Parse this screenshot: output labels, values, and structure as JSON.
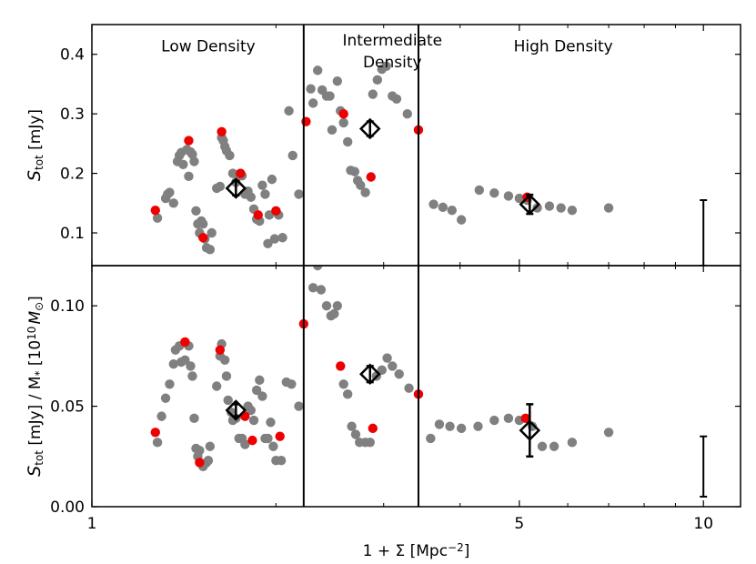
{
  "chart_data": [
    {
      "panel": "top",
      "type": "scatter",
      "xscale": "log",
      "xlim": [
        1.0,
        11.5
      ],
      "ylim": [
        0.045,
        0.45
      ],
      "ylabel_main": "S",
      "ylabel_sub": "tot",
      "ylabel_unit": " [mJy]",
      "yticks": [
        0.1,
        0.2,
        0.3,
        0.4
      ],
      "ytick_labels": [
        "0.1",
        "0.2",
        "0.3",
        "0.4"
      ],
      "region_labels": [
        {
          "text": "Low Density",
          "x": 1.55,
          "y": 0.405
        },
        {
          "text": "Intermediate",
          "x": 3.1,
          "y": 0.415
        },
        {
          "text": "Density",
          "x": 3.1,
          "y": 0.378
        },
        {
          "text": "High Density",
          "x": 5.9,
          "y": 0.405
        }
      ],
      "dividers": [
        2.22,
        3.42
      ],
      "series": [
        {
          "name": "gray",
          "color": "#808080",
          "points": [
            [
              1.28,
              0.125
            ],
            [
              1.32,
              0.158
            ],
            [
              1.33,
              0.165
            ],
            [
              1.34,
              0.168
            ],
            [
              1.36,
              0.15
            ],
            [
              1.38,
              0.22
            ],
            [
              1.39,
              0.23
            ],
            [
              1.4,
              0.235
            ],
            [
              1.41,
              0.215
            ],
            [
              1.43,
              0.24
            ],
            [
              1.44,
              0.195
            ],
            [
              1.45,
              0.236
            ],
            [
              1.46,
              0.232
            ],
            [
              1.47,
              0.22
            ],
            [
              1.48,
              0.137
            ],
            [
              1.49,
              0.115
            ],
            [
              1.5,
              0.1
            ],
            [
              1.51,
              0.12
            ],
            [
              1.52,
              0.115
            ],
            [
              1.53,
              0.09
            ],
            [
              1.54,
              0.075
            ],
            [
              1.56,
              0.072
            ],
            [
              1.57,
              0.1
            ],
            [
              1.6,
              0.175
            ],
            [
              1.62,
              0.178
            ],
            [
              1.63,
              0.26
            ],
            [
              1.64,
              0.255
            ],
            [
              1.65,
              0.245
            ],
            [
              1.66,
              0.238
            ],
            [
              1.68,
              0.23
            ],
            [
              1.7,
              0.2
            ],
            [
              1.72,
              0.185
            ],
            [
              1.74,
              0.198
            ],
            [
              1.76,
              0.196
            ],
            [
              1.78,
              0.165
            ],
            [
              1.8,
              0.17
            ],
            [
              1.82,
              0.16
            ],
            [
              1.84,
              0.14
            ],
            [
              1.86,
              0.123
            ],
            [
              1.88,
              0.12
            ],
            [
              1.9,
              0.18
            ],
            [
              1.92,
              0.165
            ],
            [
              1.94,
              0.082
            ],
            [
              1.95,
              0.13
            ],
            [
              1.97,
              0.19
            ],
            [
              1.99,
              0.09
            ],
            [
              2.02,
              0.13
            ],
            [
              2.05,
              0.092
            ],
            [
              2.1,
              0.305
            ],
            [
              2.13,
              0.23
            ],
            [
              2.18,
              0.165
            ],
            [
              2.28,
              0.342
            ],
            [
              2.3,
              0.318
            ],
            [
              2.34,
              0.373
            ],
            [
              2.38,
              0.34
            ],
            [
              2.42,
              0.33
            ],
            [
              2.45,
              0.33
            ],
            [
              2.47,
              0.273
            ],
            [
              2.52,
              0.355
            ],
            [
              2.55,
              0.305
            ],
            [
              2.58,
              0.285
            ],
            [
              2.62,
              0.253
            ],
            [
              2.65,
              0.205
            ],
            [
              2.69,
              0.203
            ],
            [
              2.72,
              0.188
            ],
            [
              2.75,
              0.18
            ],
            [
              2.8,
              0.168
            ],
            [
              2.88,
              0.333
            ],
            [
              2.93,
              0.357
            ],
            [
              2.98,
              0.375
            ],
            [
              3.03,
              0.38
            ],
            [
              3.1,
              0.33
            ],
            [
              3.15,
              0.325
            ],
            [
              3.28,
              0.3
            ],
            [
              3.62,
              0.148
            ],
            [
              3.75,
              0.143
            ],
            [
              3.88,
              0.138
            ],
            [
              4.02,
              0.122
            ],
            [
              4.3,
              0.172
            ],
            [
              4.55,
              0.167
            ],
            [
              4.8,
              0.162
            ],
            [
              5.0,
              0.158
            ],
            [
              5.15,
              0.155
            ],
            [
              5.35,
              0.142
            ],
            [
              5.6,
              0.145
            ],
            [
              5.85,
              0.142
            ],
            [
              6.1,
              0.138
            ],
            [
              7.0,
              0.142
            ]
          ]
        },
        {
          "name": "red",
          "color": "#ee0000",
          "points": [
            [
              1.27,
              0.138
            ],
            [
              1.44,
              0.255
            ],
            [
              1.52,
              0.092
            ],
            [
              1.63,
              0.27
            ],
            [
              1.75,
              0.2
            ],
            [
              1.87,
              0.13
            ],
            [
              2.0,
              0.137
            ],
            [
              2.24,
              0.287
            ],
            [
              2.58,
              0.3
            ],
            [
              2.86,
              0.194
            ],
            [
              3.42,
              0.273
            ],
            [
              5.15,
              0.16
            ]
          ]
        }
      ],
      "markers": [
        {
          "name": "low-median",
          "x": 1.72,
          "y": 0.175,
          "yerr": 0.012
        },
        {
          "name": "intermediate-median",
          "x": 2.85,
          "y": 0.275,
          "yerr": 0.012
        },
        {
          "name": "high-median",
          "x": 5.2,
          "y": 0.148,
          "yerr": 0.016
        }
      ],
      "errorbar": {
        "x": 10.0,
        "ylow": 0.045,
        "yhigh": 0.155
      }
    },
    {
      "panel": "bottom",
      "type": "scatter",
      "xscale": "log",
      "xlim": [
        1.0,
        11.5
      ],
      "ylim": [
        0.0,
        0.12
      ],
      "ylabel_main": "S",
      "ylabel_sub": "tot",
      "ylabel_unit": " [mJy] / M",
      "ylabel_star": "*",
      "ylabel_bracket": "[10",
      "ylabel_exp": "10",
      "ylabel_msun": "M",
      "ylabel_sun": "⊙",
      "ylabel_close": "]",
      "yticks": [
        0.0,
        0.05,
        0.1
      ],
      "ytick_labels": [
        "0.00",
        "0.05",
        "0.10"
      ],
      "xticks": [
        1,
        5,
        10
      ],
      "xtick_labels": [
        "1",
        "5",
        "10"
      ],
      "xlabel": "1 + Σ [Mpc",
      "xlabel_exp": "−2",
      "xlabel_close": "]",
      "dividers": [
        2.22,
        3.42
      ],
      "series": [
        {
          "name": "gray",
          "color": "#808080",
          "points": [
            [
              1.28,
              0.032
            ],
            [
              1.3,
              0.045
            ],
            [
              1.32,
              0.054
            ],
            [
              1.34,
              0.061
            ],
            [
              1.36,
              0.071
            ],
            [
              1.37,
              0.078
            ],
            [
              1.39,
              0.08
            ],
            [
              1.4,
              0.072
            ],
            [
              1.42,
              0.073
            ],
            [
              1.44,
              0.08
            ],
            [
              1.45,
              0.07
            ],
            [
              1.46,
              0.065
            ],
            [
              1.47,
              0.044
            ],
            [
              1.48,
              0.029
            ],
            [
              1.49,
              0.025
            ],
            [
              1.5,
              0.028
            ],
            [
              1.52,
              0.02
            ],
            [
              1.54,
              0.022
            ],
            [
              1.55,
              0.023
            ],
            [
              1.56,
              0.03
            ],
            [
              1.6,
              0.06
            ],
            [
              1.62,
              0.075
            ],
            [
              1.63,
              0.081
            ],
            [
              1.65,
              0.073
            ],
            [
              1.66,
              0.065
            ],
            [
              1.67,
              0.053
            ],
            [
              1.69,
              0.047
            ],
            [
              1.7,
              0.043
            ],
            [
              1.72,
              0.044
            ],
            [
              1.74,
              0.034
            ],
            [
              1.76,
              0.034
            ],
            [
              1.78,
              0.031
            ],
            [
              1.8,
              0.05
            ],
            [
              1.82,
              0.048
            ],
            [
              1.84,
              0.043
            ],
            [
              1.86,
              0.058
            ],
            [
              1.88,
              0.063
            ],
            [
              1.9,
              0.055
            ],
            [
              1.92,
              0.034
            ],
            [
              1.94,
              0.034
            ],
            [
              1.96,
              0.042
            ],
            [
              1.98,
              0.03
            ],
            [
              2.0,
              0.023
            ],
            [
              2.04,
              0.023
            ],
            [
              2.08,
              0.062
            ],
            [
              2.12,
              0.061
            ],
            [
              2.18,
              0.05
            ],
            [
              2.3,
              0.109
            ],
            [
              2.34,
              0.12
            ],
            [
              2.37,
              0.108
            ],
            [
              2.42,
              0.1
            ],
            [
              2.46,
              0.095
            ],
            [
              2.49,
              0.096
            ],
            [
              2.52,
              0.1
            ],
            [
              2.58,
              0.061
            ],
            [
              2.62,
              0.056
            ],
            [
              2.66,
              0.04
            ],
            [
              2.7,
              0.036
            ],
            [
              2.74,
              0.032
            ],
            [
              2.8,
              0.032
            ],
            [
              2.85,
              0.032
            ],
            [
              2.92,
              0.065
            ],
            [
              2.98,
              0.068
            ],
            [
              3.04,
              0.074
            ],
            [
              3.1,
              0.07
            ],
            [
              3.18,
              0.066
            ],
            [
              3.3,
              0.059
            ],
            [
              3.58,
              0.034
            ],
            [
              3.7,
              0.041
            ],
            [
              3.85,
              0.04
            ],
            [
              4.02,
              0.039
            ],
            [
              4.28,
              0.04
            ],
            [
              4.55,
              0.043
            ],
            [
              4.8,
              0.044
            ],
            [
              5.0,
              0.043
            ],
            [
              5.25,
              0.04
            ],
            [
              5.45,
              0.03
            ],
            [
              5.7,
              0.03
            ],
            [
              6.1,
              0.032
            ],
            [
              7.0,
              0.037
            ]
          ]
        },
        {
          "name": "red",
          "color": "#ee0000",
          "points": [
            [
              1.27,
              0.037
            ],
            [
              1.42,
              0.082
            ],
            [
              1.5,
              0.022
            ],
            [
              1.62,
              0.078
            ],
            [
              1.78,
              0.045
            ],
            [
              1.83,
              0.033
            ],
            [
              2.03,
              0.035
            ],
            [
              2.22,
              0.091
            ],
            [
              2.55,
              0.07
            ],
            [
              2.88,
              0.039
            ],
            [
              3.42,
              0.056
            ],
            [
              5.12,
              0.044
            ]
          ]
        }
      ],
      "markers": [
        {
          "name": "low-median",
          "x": 1.72,
          "y": 0.048,
          "yerr": 0.003
        },
        {
          "name": "intermediate-median",
          "x": 2.85,
          "y": 0.066,
          "yerr": 0.004
        },
        {
          "name": "high-median",
          "x": 5.2,
          "y": 0.038,
          "yerr": 0.013
        }
      ],
      "errorbar": {
        "x": 10.0,
        "ylow": 0.005,
        "yhigh": 0.035
      }
    }
  ]
}
